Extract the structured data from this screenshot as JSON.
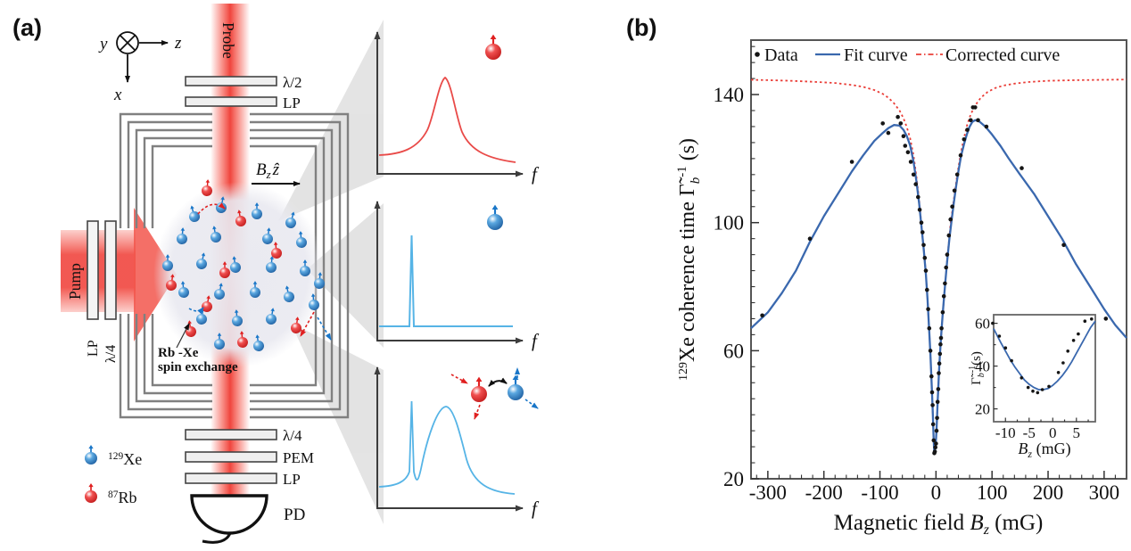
{
  "panel_a": {
    "label": "(a)",
    "axes": {
      "y": "y",
      "z": "z",
      "x": "x"
    },
    "probe_label": "Probe",
    "pump_label": "Pump",
    "optics_top": [
      "λ/2",
      "LP"
    ],
    "pump_optics": [
      "LP",
      "λ/4"
    ],
    "optics_bottom": [
      "λ/4",
      "PEM",
      "LP"
    ],
    "detector_label": "PD",
    "field_label": {
      "var": "B",
      "sub": "z",
      "hat": "ẑ"
    },
    "spin_exchange_label": [
      "Rb -Xe",
      "spin exchange"
    ],
    "legend": [
      {
        "sup": "129",
        "name": "Xe",
        "color": "#2b7bc4"
      },
      {
        "sup": "87",
        "name": "Rb",
        "color": "#e8302e"
      }
    ],
    "spectra": [
      {
        "xlabel": "f"
      },
      {
        "xlabel": "f"
      },
      {
        "xlabel": "f"
      }
    ],
    "colors": {
      "beam": "#f0453c",
      "xe": "#2b7bc4",
      "rb": "#e8302e",
      "shield": "#808080",
      "cone": "#c9c9c9"
    }
  },
  "panel_b": {
    "label": "(b)",
    "legend": {
      "data": "Data",
      "fit": "Fit curve",
      "corrected": "Corrected curve"
    },
    "xlabel": {
      "prefix": "Magnetic field ",
      "var": "B",
      "sub": "z",
      "suffix": " (mG)"
    },
    "ylabel": {
      "iso_sup": "129",
      "text": "Xe coherence time ",
      "gamma": "Γ̃",
      "sub": "b",
      "sup": "-1",
      "suffix": " (s)"
    },
    "colors": {
      "data": "#151515",
      "fit": "#3a68ae",
      "corrected": "#ea3e38",
      "tick_text": "#223055",
      "frame": "#555555"
    },
    "chart_data": {
      "type": "scatter",
      "title": "",
      "xlabel": "Magnetic field Bz (mG)",
      "ylabel": "129Xe coherence time Γ̃b⁻¹ (s)",
      "xlim": [
        -330,
        340
      ],
      "ylim": [
        20,
        157
      ],
      "xticks": [
        -300,
        -200,
        -100,
        0,
        100,
        200,
        300
      ],
      "yticks": [
        20,
        60,
        100,
        140
      ],
      "x_minor_step": 20,
      "y_minor_step": 5,
      "legend_position": "top-inside",
      "grid": false,
      "series": [
        {
          "name": "Data",
          "type": "scatter",
          "points": [
            [
              -310,
              71
            ],
            [
              -225,
              95
            ],
            [
              -150,
              119
            ],
            [
              -95,
              131
            ],
            [
              -85,
              128
            ],
            [
              -68,
              133
            ],
            [
              -63,
              131
            ],
            [
              -58,
              127
            ],
            [
              -55,
              124
            ],
            [
              -50,
              122
            ],
            [
              -45,
              119
            ],
            [
              -40,
              115
            ],
            [
              -36,
              112
            ],
            [
              -32,
              108
            ],
            [
              -29,
              104
            ],
            [
              -26,
              100
            ],
            [
              -24,
              97
            ],
            [
              -22,
              93
            ],
            [
              -20,
              89
            ],
            [
              -18,
              85
            ],
            [
              -16,
              79
            ],
            [
              -14,
              73
            ],
            [
              -12,
              67
            ],
            [
              -10,
              60
            ],
            [
              -8,
              52
            ],
            [
              -7,
              47
            ],
            [
              -6,
              43
            ],
            [
              -5,
              37
            ],
            [
              -4,
              32
            ],
            [
              -3,
              28
            ],
            [
              -2,
              28.5
            ],
            [
              -1,
              29.8
            ],
            [
              0,
              31
            ],
            [
              1,
              35
            ],
            [
              2,
              39
            ],
            [
              3,
              44
            ],
            [
              4,
              48
            ],
            [
              5,
              53
            ],
            [
              6,
              56
            ],
            [
              7,
              59
            ],
            [
              8,
              62
            ],
            [
              9,
              64
            ],
            [
              10,
              67
            ],
            [
              12,
              72
            ],
            [
              14,
              77
            ],
            [
              16,
              81
            ],
            [
              18,
              86
            ],
            [
              20,
              90
            ],
            [
              23,
              96
            ],
            [
              26,
              101
            ],
            [
              29,
              105
            ],
            [
              33,
              110
            ],
            [
              38,
              115
            ],
            [
              44,
              121
            ],
            [
              50,
              126
            ],
            [
              56,
              129
            ],
            [
              62,
              132
            ],
            [
              66,
              136
            ],
            [
              70,
              136
            ],
            [
              75,
              132
            ],
            [
              90,
              130
            ],
            [
              153,
              117
            ],
            [
              228,
              93
            ],
            [
              303,
              70
            ]
          ]
        },
        {
          "name": "Fit curve",
          "type": "line",
          "points": [
            [
              -330,
              67
            ],
            [
              -300,
              72
            ],
            [
              -275,
              78
            ],
            [
              -250,
              85
            ],
            [
              -225,
              94
            ],
            [
              -200,
              102
            ],
            [
              -175,
              109
            ],
            [
              -150,
              116
            ],
            [
              -130,
              121
            ],
            [
              -110,
              125.5
            ],
            [
              -95,
              128
            ],
            [
              -85,
              129.5
            ],
            [
              -75,
              130.5
            ],
            [
              -65,
              130.3
            ],
            [
              -58,
              129
            ],
            [
              -52,
              127
            ],
            [
              -46,
              124
            ],
            [
              -40,
              119
            ],
            [
              -35,
              113
            ],
            [
              -30,
              106
            ],
            [
              -26,
              99
            ],
            [
              -22,
              92
            ],
            [
              -18,
              84
            ],
            [
              -15,
              76
            ],
            [
              -12,
              66
            ],
            [
              -10,
              59
            ],
            [
              -8,
              51
            ],
            [
              -6,
              42
            ],
            [
              -5,
              37
            ],
            [
              -4,
              32
            ],
            [
              -3.5,
              29.5
            ],
            [
              -3,
              28.5
            ],
            [
              -2.5,
              28.2
            ],
            [
              -2,
              28.6
            ],
            [
              -1,
              30
            ],
            [
              0,
              32.5
            ],
            [
              1,
              35.5
            ],
            [
              2,
              39.5
            ],
            [
              3,
              44
            ],
            [
              4,
              48
            ],
            [
              5,
              52
            ],
            [
              6,
              55.5
            ],
            [
              8,
              61.5
            ],
            [
              10,
              66.5
            ],
            [
              12,
              71.5
            ],
            [
              14,
              76
            ],
            [
              17,
              82
            ],
            [
              20,
              88
            ],
            [
              24,
              95
            ],
            [
              28,
              101
            ],
            [
              32,
              106.5
            ],
            [
              36,
              111.5
            ],
            [
              40,
              116
            ],
            [
              45,
              121
            ],
            [
              50,
              124.5
            ],
            [
              55,
              127.5
            ],
            [
              60,
              130
            ],
            [
              65,
              131.5
            ],
            [
              70,
              132
            ],
            [
              78,
              131.5
            ],
            [
              88,
              130
            ],
            [
              100,
              127.5
            ],
            [
              115,
              124
            ],
            [
              130,
              120
            ],
            [
              150,
              115
            ],
            [
              175,
              109
            ],
            [
              200,
              102
            ],
            [
              225,
              95
            ],
            [
              250,
              87
            ],
            [
              275,
              80
            ],
            [
              300,
              73
            ],
            [
              320,
              68
            ],
            [
              340,
              64
            ]
          ]
        },
        {
          "name": "Corrected curve",
          "type": "line-dashed",
          "points": [
            [
              -330,
              144.6
            ],
            [
              -300,
              144.5
            ],
            [
              -260,
              144.3
            ],
            [
              -220,
              144
            ],
            [
              -180,
              143.6
            ],
            [
              -150,
              143
            ],
            [
              -130,
              142.4
            ],
            [
              -110,
              141.4
            ],
            [
              -95,
              140.2
            ],
            [
              -85,
              139
            ],
            [
              -75,
              137.3
            ],
            [
              -65,
              135
            ],
            [
              -58,
              132.6
            ],
            [
              -52,
              129.8
            ],
            [
              -46,
              126.2
            ],
            [
              -40,
              121
            ],
            [
              -35,
              114.5
            ],
            [
              -30,
              107
            ],
            [
              -26,
              99.5
            ],
            [
              -22,
              92.3
            ],
            [
              -18,
              84.2
            ],
            [
              -15,
              76
            ],
            [
              -12,
              66
            ],
            [
              -10,
              59
            ],
            [
              -8,
              51
            ],
            [
              -6,
              42
            ],
            [
              -5,
              37
            ],
            [
              -4,
              32
            ],
            [
              -3,
              28.5
            ],
            [
              -2,
              28.6
            ],
            [
              -1,
              30
            ],
            [
              0,
              32.5
            ],
            [
              2,
              39.5
            ],
            [
              4,
              48
            ],
            [
              6,
              55.5
            ],
            [
              8,
              61.5
            ],
            [
              10,
              66.5
            ],
            [
              14,
              76
            ],
            [
              20,
              88.3
            ],
            [
              26,
              99.6
            ],
            [
              32,
              107.5
            ],
            [
              38,
              115
            ],
            [
              44,
              121.5
            ],
            [
              50,
              126.5
            ],
            [
              56,
              130.7
            ],
            [
              62,
              133.8
            ],
            [
              70,
              136.6
            ],
            [
              80,
              139
            ],
            [
              92,
              140.8
            ],
            [
              105,
              142
            ],
            [
              120,
              142.8
            ],
            [
              140,
              143.4
            ],
            [
              165,
              143.9
            ],
            [
              200,
              144.3
            ],
            [
              250,
              144.5
            ],
            [
              300,
              144.6
            ],
            [
              340,
              144.7
            ]
          ]
        }
      ],
      "inset": {
        "xlim": [
          -12.5,
          9
        ],
        "ylim": [
          14,
          64
        ],
        "xticks": [
          -10,
          -5,
          0,
          5
        ],
        "yticks": [
          20,
          40,
          60
        ],
        "xlabel": {
          "var": "B",
          "sub": "z",
          "suffix": " (mG)"
        },
        "ylabel": {
          "gamma": "Γ̃",
          "sub": "b",
          "sup": "-1",
          "suffix": "(s)"
        },
        "series": [
          {
            "name": "Data",
            "type": "scatter",
            "points": [
              [
                -12.7,
                60
              ],
              [
                -11.3,
                54
              ],
              [
                -10,
                48.5
              ],
              [
                -8.7,
                42.5
              ],
              [
                -6.6,
                34.5
              ],
              [
                -5.2,
                30
              ],
              [
                -4.2,
                28.3
              ],
              [
                -3.2,
                27.6
              ],
              [
                -2.2,
                29
              ],
              [
                -0.8,
                30.5
              ],
              [
                1.2,
                37
              ],
              [
                2.2,
                41.5
              ],
              [
                3.2,
                47
              ],
              [
                4.4,
                52
              ],
              [
                5.4,
                55
              ],
              [
                6.8,
                61
              ],
              [
                8.2,
                62
              ]
            ]
          },
          {
            "name": "Fit curve",
            "type": "line",
            "points": [
              [
                -12.5,
                57.5
              ],
              [
                -11,
                51
              ],
              [
                -10,
                47
              ],
              [
                -9,
                43
              ],
              [
                -8,
                39.5
              ],
              [
                -7,
                36.5
              ],
              [
                -6,
                33.5
              ],
              [
                -5,
                31.5
              ],
              [
                -4,
                30
              ],
              [
                -3,
                29
              ],
              [
                -2,
                29
              ],
              [
                -1,
                29.5
              ],
              [
                0,
                31
              ],
              [
                1,
                33
              ],
              [
                2,
                35.5
              ],
              [
                3,
                38.5
              ],
              [
                4,
                42
              ],
              [
                5,
                46
              ],
              [
                6,
                50
              ],
              [
                7,
                54
              ],
              [
                8,
                58
              ],
              [
                9,
                61
              ]
            ]
          }
        ]
      }
    }
  }
}
